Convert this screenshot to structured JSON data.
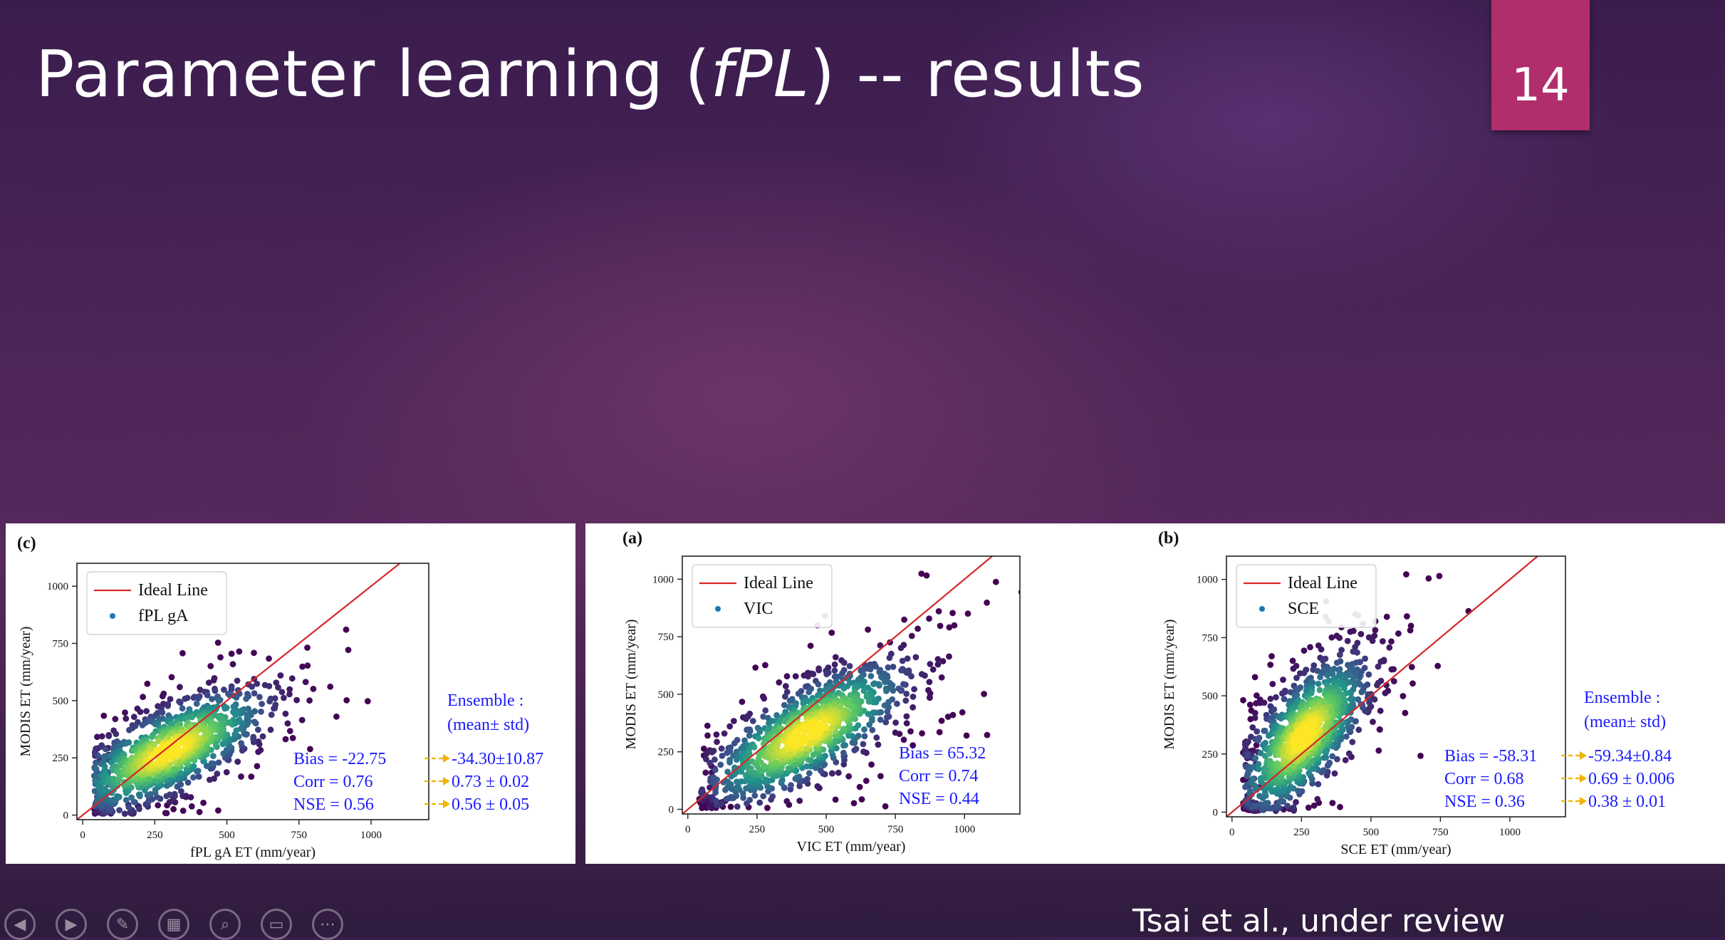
{
  "slide": {
    "title_prefix": "Parameter learning (",
    "title_italic": "fPL",
    "title_suffix": ") -- results",
    "page_number": "14",
    "citation": "Tsai et al., under review"
  },
  "toolbar": {
    "buttons": [
      {
        "name": "previous-slide-icon",
        "glyph": "◀"
      },
      {
        "name": "next-slide-icon",
        "glyph": "▶"
      },
      {
        "name": "pen-icon",
        "glyph": "✎"
      },
      {
        "name": "slide-sorter-icon",
        "glyph": "▦"
      },
      {
        "name": "zoom-icon",
        "glyph": "⌕"
      },
      {
        "name": "subtitles-icon",
        "glyph": "▭"
      },
      {
        "name": "more-options-icon",
        "glyph": "⋯"
      }
    ]
  },
  "colors": {
    "ideal_line": "#d62728",
    "legend_dot": "#1f77b4",
    "stats_text": "#1a1aff",
    "arrow": "#f0b400",
    "badge": "#b12e6c"
  },
  "chart_data": [
    {
      "type": "scatter",
      "panel_label": "(c)",
      "xlabel": "fPL gA ET (mm/year)",
      "ylabel": "MODIS ET (mm/year)",
      "xlim": [
        -20,
        1200
      ],
      "ylim": [
        -20,
        1100
      ],
      "xticks": [
        0,
        250,
        500,
        750,
        1000
      ],
      "yticks": [
        0,
        250,
        500,
        750,
        1000
      ],
      "legend": {
        "placement": "top-left",
        "entries": [
          "Ideal Line",
          "fPL gA"
        ]
      },
      "stats": [
        "Bias = -22.75",
        "Corr = 0.76",
        "NSE = 0.56"
      ],
      "ensemble": {
        "title": "Ensemble :",
        "subtitle": "(mean± std)",
        "values": [
          "-34.30±10.87",
          "0.73 ± 0.02",
          "0.56 ± 0.05"
        ]
      },
      "cloud": {
        "center": [
          300,
          280
        ],
        "spread": [
          190,
          150
        ],
        "rho": 0.72
      }
    },
    {
      "type": "scatter",
      "panel_label": "(a)",
      "xlabel": "VIC ET (mm/year)",
      "ylabel": "MODIS ET (mm/year)",
      "xlim": [
        -20,
        1200
      ],
      "ylim": [
        -20,
        1100
      ],
      "xticks": [
        0,
        250,
        500,
        750,
        1000
      ],
      "yticks": [
        0,
        250,
        500,
        750,
        1000
      ],
      "legend": {
        "placement": "top-left",
        "entries": [
          "Ideal Line",
          "VIC"
        ]
      },
      "stats": [
        "Bias = 65.32",
        "Corr = 0.74",
        "NSE = 0.44"
      ],
      "ensemble": null,
      "cloud": {
        "center": [
          430,
          330
        ],
        "spread": [
          200,
          170
        ],
        "rho": 0.74
      }
    },
    {
      "type": "scatter",
      "panel_label": "(b)",
      "xlabel": "SCE ET (mm/year)",
      "ylabel": "MODIS ET (mm/year)",
      "xlim": [
        -20,
        1200
      ],
      "ylim": [
        -20,
        1100
      ],
      "xticks": [
        0,
        250,
        500,
        750,
        1000
      ],
      "yticks": [
        0,
        250,
        500,
        750,
        1000
      ],
      "legend": {
        "placement": "top-left",
        "entries": [
          "Ideal Line",
          "SCE"
        ]
      },
      "stats": [
        "Bias = -58.31",
        "Corr = 0.68",
        "NSE = 0.36"
      ],
      "ensemble": {
        "title": "Ensemble :",
        "subtitle": "(mean± std)",
        "values": [
          "-59.34±0.84",
          "0.69 ± 0.006",
          "0.38 ± 0.01"
        ]
      },
      "cloud": {
        "center": [
          260,
          330
        ],
        "spread": [
          130,
          190
        ],
        "rho": 0.68
      }
    }
  ]
}
